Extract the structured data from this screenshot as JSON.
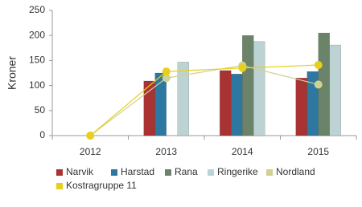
{
  "chart_data": {
    "type": "bar",
    "y_label": "Kroner",
    "categories": [
      "2012",
      "2013",
      "2014",
      "2015"
    ],
    "series": [
      {
        "name": "Narvik",
        "color": "#a93232",
        "values": [
          null,
          109,
          130,
          115
        ]
      },
      {
        "name": "Harstad",
        "color": "#2e77a0",
        "values": [
          null,
          125,
          123,
          128
        ]
      },
      {
        "name": "Rana",
        "color": "#6b8469",
        "values": [
          null,
          null,
          200,
          205
        ]
      },
      {
        "name": "Ringerike",
        "color": "#bdd3d3",
        "values": [
          null,
          147,
          188,
          181
        ]
      },
      {
        "name": "Nordland",
        "color": "#cfd18e",
        "type": "line",
        "values": [
          0,
          115,
          140,
          102
        ]
      },
      {
        "name": "Kostragruppe 11",
        "color": "#e8cf1c",
        "type": "line",
        "values": [
          0,
          128,
          135,
          141
        ]
      }
    ],
    "ylim": [
      0,
      250
    ],
    "yticks": [
      0,
      50,
      100,
      150,
      200,
      250
    ],
    "grid": false
  }
}
